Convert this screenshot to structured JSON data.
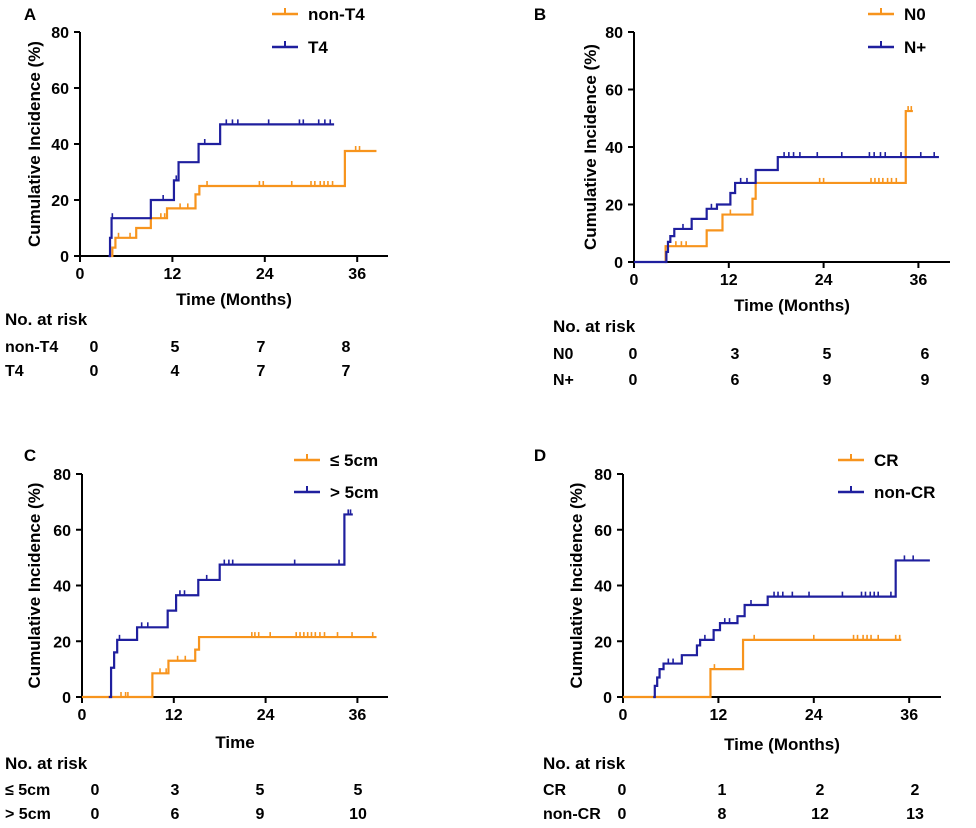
{
  "colors": {
    "orange": "#f7941d",
    "blue": "#1f1f9e",
    "axis": "#000000"
  },
  "chart_data": [
    {
      "type": "line",
      "panel": "A",
      "title": "",
      "xlabel": "Time (Months)",
      "ylabel": "Cumulative Incidence (%)",
      "xlim": [
        0,
        40
      ],
      "ylim": [
        0,
        80
      ],
      "x_ticks": [
        0,
        12,
        24,
        36
      ],
      "y_ticks": [
        0,
        20,
        40,
        60,
        80
      ],
      "legend_position": "top-right",
      "series": [
        {
          "name": "non-T4",
          "color": "#f7941d",
          "steps": [
            [
              3.8,
              0
            ],
            [
              4.2,
              3
            ],
            [
              4.6,
              6.5
            ],
            [
              7.3,
              10
            ],
            [
              9.2,
              13.5
            ],
            [
              11.3,
              17
            ],
            [
              15,
              22
            ],
            [
              15.5,
              25
            ],
            [
              34.4,
              25
            ],
            [
              34.4,
              37.5
            ],
            [
              38.5,
              37.5
            ]
          ],
          "censor": [
            5,
            6.5,
            10.5,
            11,
            13,
            14,
            16.5,
            23.3,
            23.8,
            27.5,
            30,
            30.5,
            31.2,
            31.7,
            32.2,
            32.8,
            35.8,
            36.3
          ]
        },
        {
          "name": "T4",
          "color": "#1f1f9e",
          "steps": [
            [
              3.7,
              0
            ],
            [
              3.9,
              6.5
            ],
            [
              4.1,
              13.5
            ],
            [
              9.2,
              20
            ],
            [
              12.2,
              27
            ],
            [
              12.8,
              33.5
            ],
            [
              15.4,
              40
            ],
            [
              18.2,
              47
            ],
            [
              33,
              47
            ]
          ],
          "censor": [
            4.2,
            10.8,
            12.5,
            16.2,
            19,
            19.8,
            20.5,
            24.5,
            28.5,
            29,
            31,
            31.8,
            32.5
          ]
        }
      ],
      "risk_table": {
        "title": "No. at risk",
        "timepoints": [
          0,
          12,
          24,
          36
        ],
        "rows": [
          {
            "label": "non-T4",
            "values": [
              "0",
              "5",
              "7",
              "8"
            ]
          },
          {
            "label": "T4",
            "values": [
              "0",
              "4",
              "7",
              "7"
            ]
          }
        ]
      }
    },
    {
      "type": "line",
      "panel": "B",
      "title": "",
      "xlabel": "Time (Months)",
      "ylabel": "Cumulative Incidence (%)",
      "xlim": [
        0,
        40
      ],
      "ylim": [
        0,
        80
      ],
      "x_ticks": [
        0,
        12,
        24,
        36
      ],
      "y_ticks": [
        0,
        20,
        40,
        60,
        80
      ],
      "legend_position": "top-right",
      "series": [
        {
          "name": "N0",
          "color": "#f7941d",
          "steps": [
            [
              3.9,
              0
            ],
            [
              4,
              5.5
            ],
            [
              9.2,
              11
            ],
            [
              11.2,
              16.5
            ],
            [
              15,
              22
            ],
            [
              15.4,
              27.5
            ],
            [
              34.4,
              27.5
            ],
            [
              34.4,
              52.5
            ],
            [
              35.3,
              52.5
            ]
          ],
          "censor": [
            5.3,
            6,
            6.6,
            12.2,
            23.5,
            24,
            30,
            30.5,
            31,
            31.5,
            32.1,
            32.6,
            33.2,
            34.7,
            35.1
          ]
        },
        {
          "name": "N+",
          "color": "#1f1f9e",
          "steps": [
            [
              0,
              0
            ],
            [
              3.9,
              0
            ],
            [
              4.1,
              3.5
            ],
            [
              4.3,
              7
            ],
            [
              4.6,
              9
            ],
            [
              5.1,
              11.5
            ],
            [
              7.3,
              15
            ],
            [
              9.2,
              18.5
            ],
            [
              10.5,
              20
            ],
            [
              12.2,
              24
            ],
            [
              12.8,
              27.5
            ],
            [
              15.4,
              32
            ],
            [
              18.2,
              36.5
            ],
            [
              38.6,
              36.5
            ]
          ],
          "censor": [
            6.2,
            9.8,
            13.5,
            14.3,
            19,
            19.6,
            20.2,
            21,
            23.2,
            26.3,
            29.8,
            30.4,
            31.2,
            31.8,
            33.8,
            36.3,
            38
          ]
        }
      ],
      "risk_table": {
        "title": "No. at risk",
        "timepoints": [
          0,
          12,
          24,
          36
        ],
        "rows": [
          {
            "label": "N0",
            "values": [
              "0",
              "3",
              "5",
              "6"
            ]
          },
          {
            "label": "N+",
            "values": [
              "0",
              "6",
              "9",
              "9"
            ]
          }
        ]
      }
    },
    {
      "type": "line",
      "panel": "C",
      "title": "",
      "xlabel": "Time",
      "ylabel": "Cumulative Incidence (%)",
      "xlim": [
        0,
        40
      ],
      "ylim": [
        0,
        80
      ],
      "x_ticks": [
        0,
        12,
        24,
        36
      ],
      "y_ticks": [
        0,
        20,
        40,
        60,
        80
      ],
      "legend_position": "top-right",
      "series": [
        {
          "name": "≤ 5cm",
          "color": "#f7941d",
          "steps": [
            [
              0,
              0
            ],
            [
              9.2,
              0
            ],
            [
              9.2,
              8.5
            ],
            [
              11.3,
              13
            ],
            [
              14.8,
              17
            ],
            [
              15.3,
              21.5
            ],
            [
              38.5,
              21.5
            ]
          ],
          "censor": [
            5.1,
            5.7,
            6,
            10.2,
            11,
            12.5,
            13.5,
            22.2,
            22.6,
            23.1,
            24.6,
            28,
            28.5,
            29,
            29.5,
            30,
            30.5,
            31.1,
            31.7,
            33.4,
            35.3,
            38
          ]
        },
        {
          "name": "> 5cm",
          "color": "#1f1f9e",
          "steps": [
            [
              3.5,
              0
            ],
            [
              3.8,
              10.5
            ],
            [
              4.2,
              16
            ],
            [
              4.6,
              20.5
            ],
            [
              7.2,
              25
            ],
            [
              11.2,
              31
            ],
            [
              12.3,
              36.5
            ],
            [
              15.2,
              42
            ],
            [
              18,
              47.5
            ],
            [
              34.3,
              47.5
            ],
            [
              34.3,
              65.5
            ],
            [
              35.4,
              65.5
            ]
          ],
          "censor": [
            4.9,
            7.8,
            8.6,
            12.8,
            13.4,
            16.3,
            18.6,
            19.2,
            19.7,
            27.8,
            33.6,
            34.8,
            35.1
          ]
        }
      ],
      "risk_table": {
        "title": "No. at risk",
        "timepoints": [
          0,
          12,
          24,
          36
        ],
        "rows": [
          {
            "label": "≤ 5cm",
            "values": [
              "0",
              "3",
              "5",
              "5"
            ]
          },
          {
            "label": "> 5cm",
            "values": [
              "0",
              "6",
              "9",
              "10"
            ]
          }
        ]
      }
    },
    {
      "type": "line",
      "panel": "D",
      "title": "",
      "xlabel": "Time (Months)",
      "ylabel": "Cumulative Incidence (%)",
      "xlim": [
        0,
        40
      ],
      "ylim": [
        0,
        80
      ],
      "x_ticks": [
        0,
        12,
        24,
        36
      ],
      "y_ticks": [
        0,
        20,
        40,
        60,
        80
      ],
      "legend_position": "top-right",
      "series": [
        {
          "name": "CR",
          "color": "#f7941d",
          "steps": [
            [
              0,
              0
            ],
            [
              11,
              0
            ],
            [
              11,
              10
            ],
            [
              15.1,
              10
            ],
            [
              15.1,
              20.5
            ],
            [
              35,
              20.5
            ]
          ],
          "censor": [
            11.5,
            16.5,
            24,
            29,
            29.5,
            30.2,
            30.7,
            31.2,
            32.1,
            34.3,
            34.8
          ]
        },
        {
          "name": "non-CR",
          "color": "#1f1f9e",
          "steps": [
            [
              3.8,
              0
            ],
            [
              4,
              4
            ],
            [
              4.3,
              7
            ],
            [
              4.6,
              10
            ],
            [
              5.1,
              12
            ],
            [
              7.4,
              15
            ],
            [
              9.3,
              18.5
            ],
            [
              9.7,
              20.5
            ],
            [
              11.4,
              24
            ],
            [
              12.2,
              26.5
            ],
            [
              14.4,
              29
            ],
            [
              15.3,
              33
            ],
            [
              18.2,
              36
            ],
            [
              34.3,
              36
            ],
            [
              34.3,
              49
            ],
            [
              38.6,
              49
            ]
          ],
          "censor": [
            5.7,
            6.3,
            10.3,
            12.8,
            13.4,
            16.1,
            19,
            19.5,
            20.1,
            21.3,
            23.4,
            27.6,
            30,
            30.5,
            31.1,
            31.6,
            32.1,
            33.7,
            35.4,
            36.5
          ]
        }
      ],
      "risk_table": {
        "title": "No. at risk",
        "timepoints": [
          0,
          12,
          24,
          36
        ],
        "rows": [
          {
            "label": "CR",
            "values": [
              "0",
              "1",
              "2",
              "2"
            ]
          },
          {
            "label": "non-CR",
            "values": [
              "0",
              "8",
              "12",
              "13"
            ]
          }
        ]
      }
    }
  ]
}
